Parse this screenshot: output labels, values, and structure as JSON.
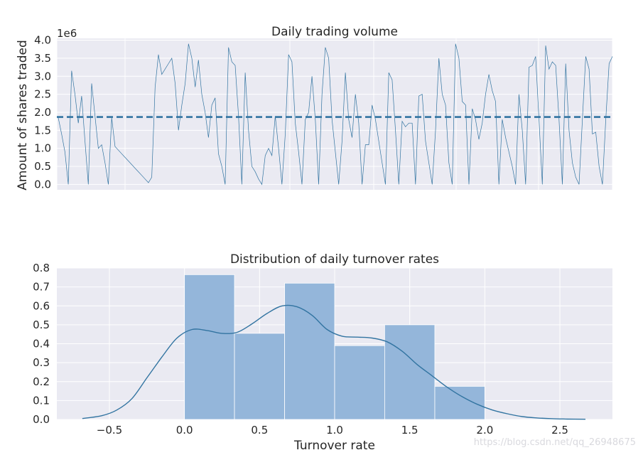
{
  "chart_data": [
    {
      "type": "line",
      "title": "Daily trading volume",
      "ylabel": "Amount of shares traded",
      "xlabel": "",
      "offset_label": "1e6",
      "ylim": [
        -0.15,
        4.05
      ],
      "y_ticks": [
        0.0,
        0.5,
        1.0,
        1.5,
        2.0,
        2.5,
        3.0,
        3.5,
        4.0
      ],
      "y_tick_labels": [
        "0.0",
        "0.5",
        "1.0",
        "1.5",
        "2.0",
        "2.5",
        "3.0",
        "3.5",
        "4.0"
      ],
      "x_tick_labels": [],
      "grid": true,
      "mean_line": 1.87,
      "series": [
        {
          "values": [
            1.85,
            1.4,
            0.9,
            0.0,
            3.15,
            2.5,
            1.7,
            2.45,
            1.2,
            0.0,
            2.8,
            1.9,
            1.0,
            1.1,
            0.6,
            0.0,
            1.85,
            1.05,
            0.95,
            0.85,
            0.75,
            0.65,
            0.55,
            0.45,
            0.35,
            0.25,
            0.15,
            0.05,
            0.2,
            2.7,
            3.6,
            3.05,
            3.2,
            3.35,
            3.5,
            2.8,
            1.5,
            2.2,
            2.8,
            3.9,
            3.5,
            2.7,
            3.45,
            2.5,
            2.0,
            1.3,
            2.2,
            2.4,
            0.85,
            0.5,
            0.0,
            3.8,
            3.4,
            3.3,
            1.9,
            0.0,
            3.1,
            1.5,
            0.5,
            0.35,
            0.15,
            0.0,
            0.8,
            1.0,
            0.8,
            1.9,
            1.0,
            0.0,
            1.4,
            3.6,
            3.4,
            1.7,
            0.9,
            0.0,
            1.8,
            2.0,
            3.0,
            1.8,
            0.0,
            2.5,
            3.8,
            3.5,
            1.8,
            0.9,
            0.0,
            1.2,
            3.1,
            1.8,
            1.3,
            2.5,
            1.7,
            0.0,
            1.1,
            1.1,
            2.2,
            1.8,
            1.2,
            0.6,
            0.0,
            3.1,
            2.9,
            1.5,
            0.0,
            1.75,
            1.6,
            1.7,
            1.7,
            0.0,
            2.45,
            2.5,
            1.2,
            0.6,
            0.0,
            1.5,
            3.5,
            2.5,
            2.2,
            0.6,
            0.0,
            3.9,
            3.5,
            2.3,
            2.2,
            0.0,
            2.1,
            1.8,
            1.25,
            1.7,
            2.5,
            3.05,
            2.6,
            2.3,
            0.0,
            1.8,
            1.3,
            0.9,
            0.5,
            0.0,
            2.5,
            1.5,
            0.0,
            3.25,
            3.3,
            3.55,
            1.8,
            0.0,
            3.85,
            3.2,
            3.4,
            3.3,
            1.8,
            0.0,
            3.35,
            1.5,
            0.6,
            0.2,
            0.0,
            1.8,
            3.55,
            3.2,
            1.4,
            1.45,
            0.5,
            0.0,
            1.8,
            3.35,
            3.55
          ]
        }
      ]
    },
    {
      "type": "bar",
      "title": "Distribution of daily turnover rates",
      "xlabel": "Turnover rate",
      "ylabel": "",
      "xlim": [
        -0.85,
        2.85
      ],
      "ylim": [
        0.0,
        0.8
      ],
      "x_ticks": [
        -0.5,
        0.0,
        0.5,
        1.0,
        1.5,
        2.0,
        2.5
      ],
      "x_tick_labels": [
        "−0.5",
        "0.0",
        "0.5",
        "1.0",
        "1.5",
        "2.0",
        "2.5"
      ],
      "y_ticks": [
        0.0,
        0.1,
        0.2,
        0.3,
        0.4,
        0.5,
        0.6,
        0.7,
        0.8
      ],
      "y_tick_labels": [
        "0.0",
        "0.1",
        "0.2",
        "0.3",
        "0.4",
        "0.5",
        "0.6",
        "0.7",
        "0.8"
      ],
      "grid": true,
      "bins": [
        {
          "x0": 0.0,
          "x1": 0.333,
          "value": 0.765
        },
        {
          "x0": 0.333,
          "x1": 0.667,
          "value": 0.455
        },
        {
          "x0": 0.667,
          "x1": 1.0,
          "value": 0.72
        },
        {
          "x0": 1.0,
          "x1": 1.333,
          "value": 0.39
        },
        {
          "x0": 1.333,
          "x1": 1.667,
          "value": 0.5
        },
        {
          "x0": 1.667,
          "x1": 2.0,
          "value": 0.175
        }
      ],
      "kde": {
        "x": [
          -0.68,
          -0.55,
          -0.45,
          -0.35,
          -0.25,
          -0.15,
          -0.05,
          0.05,
          0.15,
          0.25,
          0.35,
          0.45,
          0.55,
          0.65,
          0.75,
          0.85,
          0.95,
          1.05,
          1.15,
          1.25,
          1.35,
          1.45,
          1.55,
          1.65,
          1.75,
          1.85,
          1.95,
          2.05,
          2.15,
          2.25,
          2.35,
          2.45,
          2.55,
          2.67
        ],
        "y": [
          0.005,
          0.02,
          0.05,
          0.11,
          0.22,
          0.33,
          0.43,
          0.475,
          0.47,
          0.455,
          0.46,
          0.505,
          0.56,
          0.6,
          0.595,
          0.55,
          0.475,
          0.44,
          0.435,
          0.43,
          0.41,
          0.36,
          0.29,
          0.23,
          0.17,
          0.12,
          0.08,
          0.05,
          0.03,
          0.015,
          0.008,
          0.004,
          0.002,
          0.001
        ]
      }
    }
  ],
  "colors": {
    "axes_bg": "#eaeaf2",
    "grid": "#ffffff",
    "line": "#3274a1",
    "bar_fill": "#94b6da",
    "bar_edge": "#ffffff",
    "text": "#262626"
  },
  "watermark": "https://blog.csdn.net/qq_26948675"
}
